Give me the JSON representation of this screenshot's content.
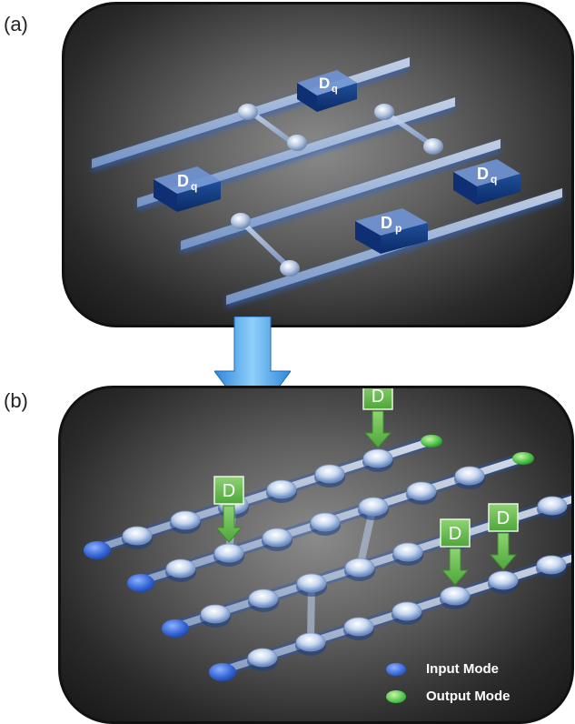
{
  "panel_a": {
    "label": "(a)",
    "blocks": [
      {
        "main": "D",
        "sub": "q"
      },
      {
        "main": "D",
        "sub": "q"
      },
      {
        "main": "D",
        "sub": "p"
      },
      {
        "main": "D",
        "sub": "q"
      }
    ]
  },
  "panel_b": {
    "label": "(b)",
    "markers": [
      "D",
      "D",
      "D",
      "D"
    ],
    "legend": {
      "input_label": "Input Mode",
      "output_label": "Output Mode"
    }
  },
  "colors": {
    "input_mode": "#3a6ee0",
    "output_mode": "#4cc24a",
    "marker_green": "#6fbf55",
    "waveguide_blue": "#6f9ee8",
    "arrow_blue": "#4aa3e8"
  }
}
